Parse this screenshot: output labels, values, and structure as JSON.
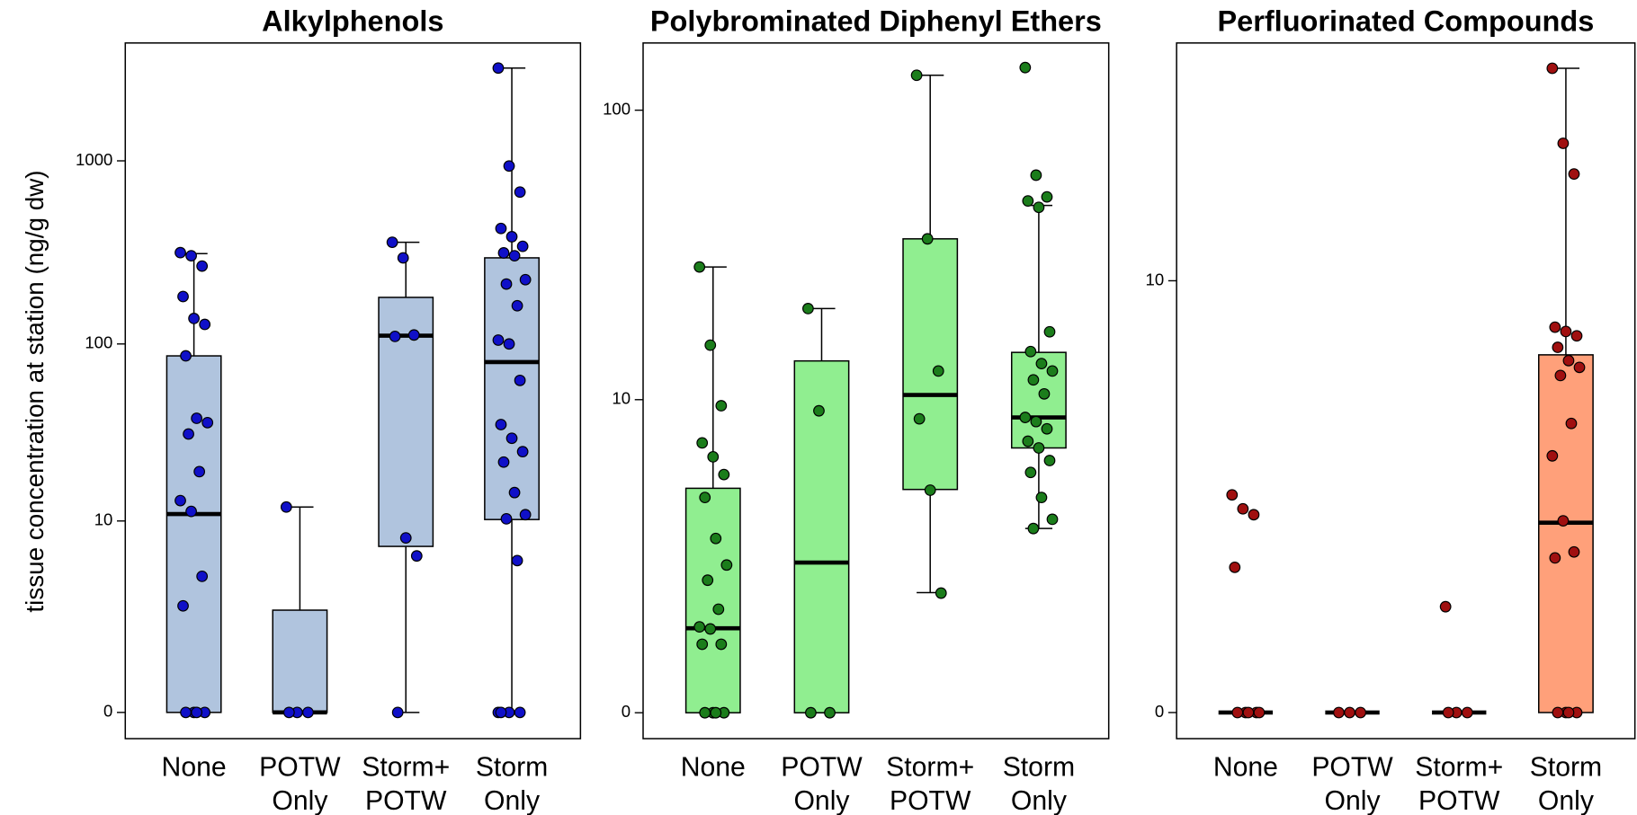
{
  "chart_data": [
    {
      "type": "box",
      "title": "Alkylphenols",
      "ylabel": "tissue concentration at station (ng/g dw)",
      "yscale": "log1p",
      "ylim": [
        -0.28,
        4380
      ],
      "yticks": [
        0,
        10,
        100,
        1000
      ],
      "box_color": "#b0c4de",
      "point_color": "#1010c8",
      "categories": [
        [
          "None"
        ],
        [
          "POTW",
          "Only"
        ],
        [
          "Storm+",
          "POTW"
        ],
        [
          "Storm",
          "Only"
        ]
      ],
      "boxes": [
        {
          "whisker_low": 0,
          "q1": 0,
          "median": 11,
          "q3": 86,
          "whisker_high": 312,
          "points": [
            316,
            304,
            267,
            182,
            138,
            128,
            86,
            38.8,
            36.7,
            31.7,
            19.4,
            13.2,
            11.4,
            4.5,
            2.8,
            0,
            0,
            0,
            0
          ]
        },
        {
          "whisker_low": 0,
          "q1": 0,
          "median": 0,
          "q3": 2.6,
          "whisker_high": 12.1,
          "points": [
            12.1,
            0,
            0,
            0
          ]
        },
        {
          "whisker_low": 0,
          "q1": 7,
          "median": 111,
          "q3": 180,
          "whisker_high": 360,
          "points": [
            360,
            296,
            112,
            110,
            7.9,
            6.1,
            0
          ]
        },
        {
          "whisker_low": 0,
          "q1": 10.2,
          "median": 79.5,
          "q3": 296,
          "whisker_high": 3200,
          "points": [
            3200,
            937,
            676,
            428,
            386,
            342,
            315,
            304,
            225,
            213,
            162,
            105,
            100,
            63,
            35.8,
            30,
            25.2,
            22,
            14.7,
            10.9,
            10.3,
            5.7,
            0,
            0,
            0,
            0
          ]
        }
      ]
    },
    {
      "type": "box",
      "title": "Polybrominated Diphenyl Ethers",
      "yscale": "log1p",
      "ylim": [
        -0.18,
        168
      ],
      "yticks": [
        0,
        10,
        100
      ],
      "box_color": "#90ee90",
      "point_color": "#1b7d1b",
      "categories": [
        [
          "None"
        ],
        [
          "POTW",
          "Only"
        ],
        [
          "Storm+",
          "POTW"
        ],
        [
          "Storm",
          "Only"
        ]
      ],
      "boxes": [
        {
          "whisker_low": 0,
          "q1": 0,
          "median": 0.91,
          "q3": 4.58,
          "whisker_high": 29.4,
          "points": [
            29.4,
            15.7,
            9.5,
            6.9,
            6.1,
            5.2,
            4.2,
            2.8,
            2.1,
            1.76,
            1.21,
            0.93,
            0.9,
            0.69,
            0.69,
            0,
            0,
            0,
            0
          ]
        },
        {
          "whisker_low": 0,
          "q1": 0,
          "median": 2.16,
          "q3": 13.8,
          "whisker_high": 21.1,
          "points": [
            21.1,
            9.1,
            0,
            0
          ]
        },
        {
          "whisker_low": 1.51,
          "q1": 4.53,
          "median": 10.4,
          "q3": 36.7,
          "whisker_high": 131,
          "points": [
            131,
            36.7,
            12.7,
            8.5,
            4.5,
            1.5
          ]
        },
        {
          "whisker_low": 3.1,
          "q1": 6.6,
          "median": 8.6,
          "q3": 14.8,
          "whisker_high": 47.7,
          "points": [
            139,
            60.4,
            51,
            49.4,
            47,
            17.5,
            14.9,
            13.5,
            12.7,
            11.8,
            10.5,
            8.6,
            8.3,
            7.8,
            7,
            6.6,
            5.9,
            5.3,
            4.2,
            3.4,
            3.1
          ]
        }
      ]
    },
    {
      "type": "box",
      "title": "Perfluorinated Compounds",
      "yscale": "log1p",
      "ylim": [
        -0.135,
        40.2
      ],
      "yticks": [
        0,
        10
      ],
      "box_color": "#ffa07a",
      "point_color": "#a01010",
      "categories": [
        [
          "None"
        ],
        [
          "POTW",
          "Only"
        ],
        [
          "Storm+",
          "POTW"
        ],
        [
          "Storm",
          "Only"
        ]
      ],
      "boxes": [
        {
          "whisker_low": 0,
          "q1": 0,
          "median": 0,
          "q3": 0,
          "whisker_high": 0,
          "points": [
            2.35,
            2.1,
            2,
            1.24,
            0,
            0,
            0,
            0,
            0
          ]
        },
        {
          "whisker_low": 0,
          "q1": 0,
          "median": 0,
          "q3": 0,
          "whisker_high": 0,
          "points": [
            0,
            0,
            0
          ]
        },
        {
          "whisker_low": 0,
          "q1": 0,
          "median": 0,
          "q3": 0,
          "whisker_high": 0,
          "points": [
            0.8,
            0,
            0,
            0
          ]
        },
        {
          "whisker_low": 0,
          "q1": 0,
          "median": 1.87,
          "q3": 6.29,
          "whisker_high": 34.8,
          "points": [
            34.8,
            22.6,
            18.9,
            7.5,
            7.3,
            7.1,
            6.6,
            6.06,
            5.8,
            5.5,
            3.98,
            3.16,
            1.9,
            1.44,
            1.36,
            0,
            0,
            0,
            0
          ]
        }
      ]
    }
  ]
}
